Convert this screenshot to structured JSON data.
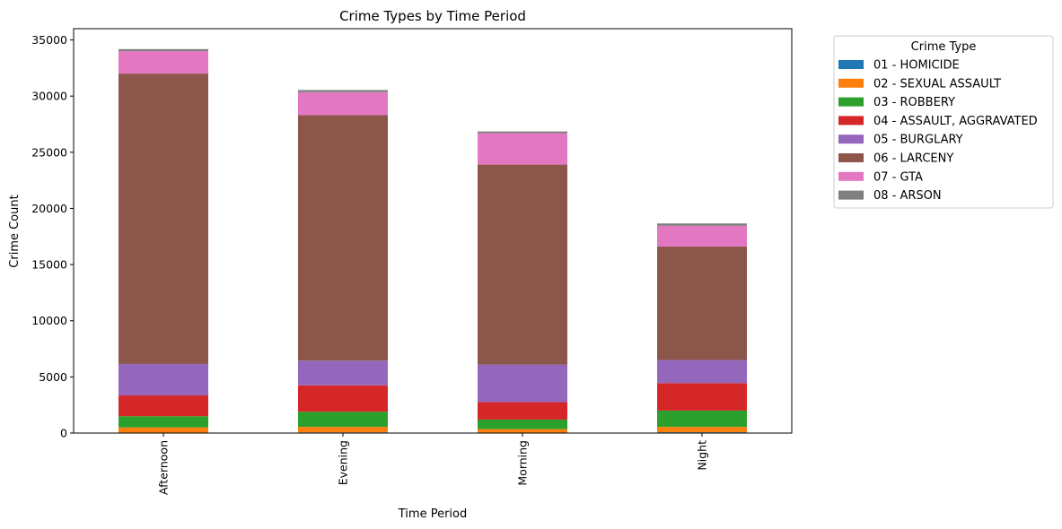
{
  "chart_data": {
    "type": "bar",
    "stacked": true,
    "title": "Crime Types by Time Period",
    "xlabel": "Time Period",
    "ylabel": "Crime Count",
    "ylim": [
      0,
      36000
    ],
    "yticks": [
      0,
      5000,
      10000,
      15000,
      20000,
      25000,
      30000,
      35000
    ],
    "categories": [
      "Afternoon",
      "Evening",
      "Morning",
      "Night"
    ],
    "legend": {
      "title": "Crime Type",
      "placement": "outside-right-top"
    },
    "grid": false,
    "series": [
      {
        "name": "01 - HOMICIDE",
        "color": "#1f77b4",
        "values": [
          40,
          60,
          25,
          70
        ]
      },
      {
        "name": "02 - SEXUAL ASSAULT",
        "color": "#ff7f0e",
        "values": [
          460,
          490,
          325,
          480
        ]
      },
      {
        "name": "03 - ROBBERY",
        "color": "#2ca02c",
        "values": [
          1000,
          1350,
          850,
          1450
        ]
      },
      {
        "name": "04 - ASSAULT, AGGRAVATED",
        "color": "#d62728",
        "values": [
          1850,
          2350,
          1550,
          2450
        ]
      },
      {
        "name": "05 - BURGLARY",
        "color": "#9467bd",
        "values": [
          2800,
          2200,
          3350,
          2050
        ]
      },
      {
        "name": "06 - LARCENY",
        "color": "#8c564b",
        "values": [
          25850,
          21850,
          17800,
          10100
        ]
      },
      {
        "name": "07 - GTA",
        "color": "#e377c2",
        "values": [
          2000,
          2050,
          2800,
          1850
        ]
      },
      {
        "name": "08 - ARSON",
        "color": "#7f7f7f",
        "values": [
          180,
          190,
          150,
          210
        ]
      }
    ]
  }
}
